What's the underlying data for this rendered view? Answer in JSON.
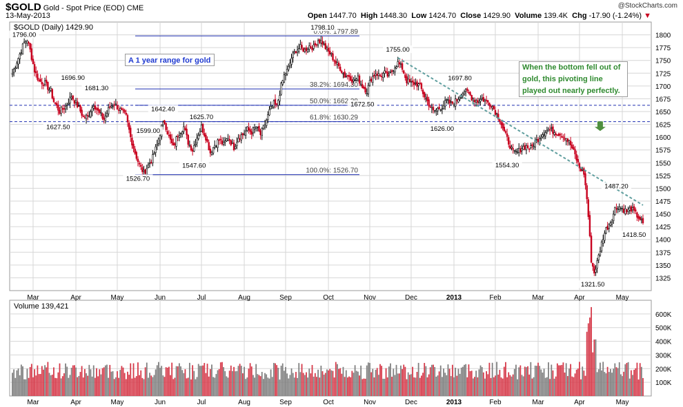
{
  "header": {
    "symbol": "$GOLD",
    "name": "Gold - Spot Price (EOD)",
    "exchange": "CME",
    "date": "13-May-2013",
    "brand": "@StockCharts.com",
    "open_label": "Open",
    "open": "1447.70",
    "high_label": "High",
    "high": "1448.30",
    "low_label": "Low",
    "low": "1424.70",
    "close_label": "Close",
    "close": "1429.90",
    "volume_label": "Volume",
    "volume": "139.4K",
    "chg_label": "Chg",
    "chg": "-17.90 (-1.24%)",
    "chg_arrow": "▼"
  },
  "legend": {
    "price": "$GOLD (Daily) 1429.90",
    "volume": "Volume 139,421"
  },
  "notes": {
    "range": "A 1 year range for gold",
    "pivot": "When the bottom fell out of gold, this pivoting line played out nearly perfectly."
  },
  "colors": {
    "up": "#000000",
    "down": "#c8001e",
    "vol_up": "#808080",
    "vol_down": "#d63a4a",
    "fib": "#1c2db0",
    "trend": "#5f9e9e",
    "arrow": "#4f8f3f",
    "grid": "#d6d6d6"
  },
  "chart_data": {
    "type": "candlestick",
    "title": "$GOLD Gold - Spot Price (EOD) CME",
    "period": "Daily",
    "ylim": [
      1300,
      1825
    ],
    "yticks": [
      1325,
      1350,
      1375,
      1400,
      1425,
      1450,
      1475,
      1500,
      1525,
      1550,
      1575,
      1600,
      1625,
      1650,
      1675,
      1700,
      1725,
      1750,
      1775,
      1800
    ],
    "months": [
      "Mar",
      "Apr",
      "May",
      "Jun",
      "Jul",
      "Aug",
      "Sep",
      "Oct",
      "Nov",
      "Dec",
      "2013",
      "Feb",
      "Mar",
      "Apr",
      "May"
    ],
    "volume_ylim": [
      0,
      700000
    ],
    "volume_ticks": [
      {
        "value": 100000,
        "label": "100K"
      },
      {
        "value": 200000,
        "label": "200K"
      },
      {
        "value": 300000,
        "label": "300K"
      },
      {
        "value": 400000,
        "label": "400K"
      },
      {
        "value": 500000,
        "label": "500K"
      },
      {
        "value": 600000,
        "label": "600K"
      }
    ],
    "anchors": [
      [
        0,
        1725
      ],
      [
        4,
        1755
      ],
      [
        8,
        1785
      ],
      [
        10,
        1790
      ],
      [
        12,
        1770
      ],
      [
        15,
        1730
      ],
      [
        18,
        1710
      ],
      [
        22,
        1705
      ],
      [
        26,
        1690
      ],
      [
        28,
        1670
      ],
      [
        32,
        1650
      ],
      [
        36,
        1660
      ],
      [
        40,
        1680
      ],
      [
        44,
        1662
      ],
      [
        48,
        1640
      ],
      [
        51,
        1640
      ],
      [
        55,
        1665
      ],
      [
        58,
        1650
      ],
      [
        62,
        1635
      ],
      [
        66,
        1660
      ],
      [
        69,
        1665
      ],
      [
        74,
        1650
      ],
      [
        77,
        1640
      ],
      [
        80,
        1600
      ],
      [
        83,
        1570
      ],
      [
        86,
        1545
      ],
      [
        89,
        1530
      ],
      [
        92,
        1545
      ],
      [
        95,
        1560
      ],
      [
        98,
        1585
      ],
      [
        101,
        1620
      ],
      [
        103,
        1630
      ],
      [
        106,
        1600
      ],
      [
        109,
        1580
      ],
      [
        112,
        1605
      ],
      [
        116,
        1620
      ],
      [
        119,
        1590
      ],
      [
        122,
        1575
      ],
      [
        125,
        1600
      ],
      [
        128,
        1620
      ],
      [
        131,
        1600
      ],
      [
        134,
        1570
      ],
      [
        137,
        1585
      ],
      [
        140,
        1595
      ],
      [
        143,
        1585
      ],
      [
        146,
        1600
      ],
      [
        150,
        1580
      ],
      [
        153,
        1600
      ],
      [
        156,
        1605
      ],
      [
        159,
        1615
      ],
      [
        162,
        1610
      ],
      [
        165,
        1620
      ],
      [
        168,
        1605
      ],
      [
        171,
        1625
      ],
      [
        174,
        1650
      ],
      [
        177,
        1665
      ],
      [
        179,
        1660
      ],
      [
        182,
        1700
      ],
      [
        184,
        1720
      ],
      [
        187,
        1735
      ],
      [
        189,
        1755
      ],
      [
        192,
        1770
      ],
      [
        195,
        1775
      ],
      [
        198,
        1770
      ],
      [
        201,
        1778
      ],
      [
        204,
        1775
      ],
      [
        207,
        1790
      ],
      [
        210,
        1785
      ],
      [
        213,
        1770
      ],
      [
        216,
        1760
      ],
      [
        219,
        1745
      ],
      [
        222,
        1735
      ],
      [
        225,
        1720
      ],
      [
        228,
        1720
      ],
      [
        231,
        1710
      ],
      [
        234,
        1715
      ],
      [
        237,
        1700
      ],
      [
        240,
        1690
      ],
      [
        243,
        1715
      ],
      [
        246,
        1725
      ],
      [
        249,
        1720
      ],
      [
        252,
        1725
      ],
      [
        255,
        1718
      ],
      [
        258,
        1735
      ],
      [
        261,
        1745
      ],
      [
        264,
        1735
      ],
      [
        267,
        1710
      ],
      [
        270,
        1705
      ],
      [
        273,
        1705
      ],
      [
        276,
        1700
      ],
      [
        279,
        1680
      ],
      [
        282,
        1665
      ],
      [
        285,
        1650
      ],
      [
        288,
        1655
      ],
      [
        291,
        1660
      ],
      [
        294,
        1670
      ],
      [
        297,
        1665
      ],
      [
        300,
        1670
      ],
      [
        303,
        1680
      ],
      [
        306,
        1690
      ],
      [
        309,
        1685
      ],
      [
        312,
        1675
      ],
      [
        315,
        1670
      ],
      [
        318,
        1675
      ],
      [
        321,
        1670
      ],
      [
        324,
        1665
      ],
      [
        327,
        1650
      ],
      [
        330,
        1635
      ],
      [
        333,
        1610
      ],
      [
        336,
        1590
      ],
      [
        339,
        1570
      ],
      [
        342,
        1570
      ],
      [
        345,
        1580
      ],
      [
        348,
        1582
      ],
      [
        351,
        1578
      ],
      [
        354,
        1590
      ],
      [
        357,
        1600
      ],
      [
        360,
        1610
      ],
      [
        363,
        1615
      ],
      [
        366,
        1612
      ],
      [
        369,
        1608
      ],
      [
        372,
        1605
      ],
      [
        375,
        1598
      ],
      [
        378,
        1585
      ],
      [
        381,
        1565
      ],
      [
        384,
        1540
      ],
      [
        387,
        1530
      ],
      [
        389,
        1480
      ],
      [
        390,
        1445
      ],
      [
        392,
        1360
      ],
      [
        394,
        1335
      ],
      [
        396,
        1355
      ],
      [
        398,
        1380
      ],
      [
        400,
        1405
      ],
      [
        402,
        1420
      ],
      [
        404,
        1430
      ],
      [
        406,
        1440
      ],
      [
        408,
        1460
      ],
      [
        410,
        1465
      ],
      [
        413,
        1460
      ],
      [
        416,
        1455
      ],
      [
        419,
        1460
      ],
      [
        422,
        1450
      ],
      [
        425,
        1440
      ],
      [
        427,
        1430
      ]
    ],
    "fibonacci": [
      {
        "level": "0.0%",
        "value": 1797.89,
        "label": "0.0%: 1797.89"
      },
      {
        "level": "38.2%",
        "value": 1694.3,
        "label": "38.2%: 1694.30"
      },
      {
        "level": "50.0%",
        "value": 1662.29,
        "label": "50.0%: 1662.29"
      },
      {
        "level": "61.8%",
        "value": 1630.29,
        "label": "61.8%: 1630.29"
      },
      {
        "level": "100.0%",
        "value": 1526.7,
        "label": "100.0%: 1526.70"
      }
    ],
    "dashed_levels": [
      1662.29,
      1630.29
    ],
    "trendline": {
      "from": {
        "bar": 261,
        "value": 1755
      },
      "to": {
        "bar": 427,
        "value": 1467
      }
    },
    "pivot_arrow_bar": 398,
    "price_annotations": [
      {
        "label": "1796.00",
        "bar": 8,
        "value": 1796.0,
        "pos": "above"
      },
      {
        "label": "1696.90",
        "bar": 41,
        "value": 1712,
        "pos": "above"
      },
      {
        "label": "1681.30",
        "bar": 57,
        "value": 1692,
        "pos": "above"
      },
      {
        "label": "1627.50",
        "bar": 31,
        "value": 1616,
        "pos": "below"
      },
      {
        "label": "1642.40",
        "bar": 102,
        "value": 1651,
        "pos": "above"
      },
      {
        "label": "1625.70",
        "bar": 128,
        "value": 1635,
        "pos": "above"
      },
      {
        "label": "1599.00",
        "bar": 92,
        "value": 1608,
        "pos": "above"
      },
      {
        "label": "1547.60",
        "bar": 123,
        "value": 1540,
        "pos": "below"
      },
      {
        "label": "1526.70",
        "bar": 85,
        "value": 1515,
        "pos": "below"
      },
      {
        "label": "1798.10",
        "bar": 210,
        "value": 1810,
        "pos": "above"
      },
      {
        "label": "1755.00",
        "bar": 261,
        "value": 1767,
        "pos": "above"
      },
      {
        "label": "1672.50",
        "bar": 237,
        "value": 1660,
        "pos": "below"
      },
      {
        "label": "1697.80",
        "bar": 303,
        "value": 1711,
        "pos": "above"
      },
      {
        "label": "1626.00",
        "bar": 291,
        "value": 1612,
        "pos": "below"
      },
      {
        "label": "1554.30",
        "bar": 335,
        "value": 1541,
        "pos": "below"
      },
      {
        "label": "1487.20",
        "bar": 409,
        "value": 1500,
        "pos": "above"
      },
      {
        "label": "1418.50",
        "bar": 421,
        "value": 1405,
        "pos": "below"
      },
      {
        "label": "1321.50",
        "bar": 393,
        "value": 1308,
        "pos": "below"
      }
    ]
  }
}
